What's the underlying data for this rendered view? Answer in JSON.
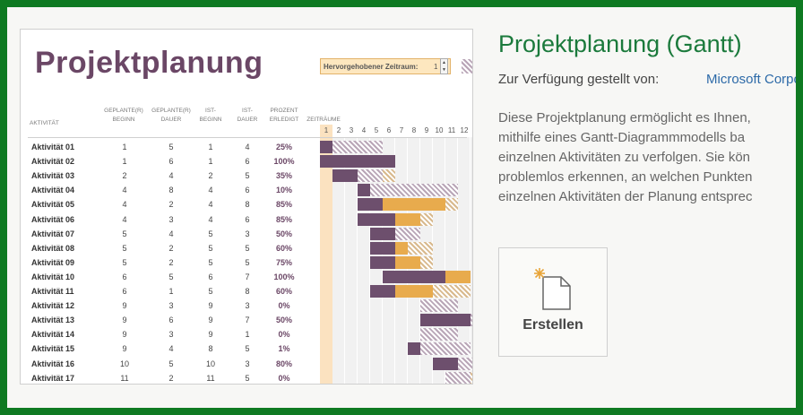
{
  "preview": {
    "title": "Projektplanung",
    "highlight_label": "Hervorgehobener Zeitraum:",
    "highlight_value": "1",
    "headers": {
      "activity": "AKTIVITÄT",
      "plan_start": [
        "GEPLANTE(R)",
        "BEGINN"
      ],
      "plan_dur": [
        "GEPLANTE(R)",
        "DAUER"
      ],
      "act_start": [
        "IST-",
        "BEGINN"
      ],
      "act_dur": [
        "IST-",
        "DAUER"
      ],
      "percent": [
        "PROZENT",
        "ERLEDIGT"
      ],
      "periods": "ZEITRÄUME"
    },
    "days": [
      "1",
      "2",
      "3",
      "4",
      "5",
      "6",
      "7",
      "8",
      "9",
      "10",
      "11",
      "12"
    ],
    "rows": [
      {
        "name": "Aktivität 01",
        "ps": "1",
        "pd": "5",
        "as": "1",
        "ad": "4",
        "pct": "25%"
      },
      {
        "name": "Aktivität 02",
        "ps": "1",
        "pd": "6",
        "as": "1",
        "ad": "6",
        "pct": "100%"
      },
      {
        "name": "Aktivität 03",
        "ps": "2",
        "pd": "4",
        "as": "2",
        "ad": "5",
        "pct": "35%"
      },
      {
        "name": "Aktivität 04",
        "ps": "4",
        "pd": "8",
        "as": "4",
        "ad": "6",
        "pct": "10%"
      },
      {
        "name": "Aktivität 05",
        "ps": "4",
        "pd": "2",
        "as": "4",
        "ad": "8",
        "pct": "85%"
      },
      {
        "name": "Aktivität 06",
        "ps": "4",
        "pd": "3",
        "as": "4",
        "ad": "6",
        "pct": "85%"
      },
      {
        "name": "Aktivität 07",
        "ps": "5",
        "pd": "4",
        "as": "5",
        "ad": "3",
        "pct": "50%"
      },
      {
        "name": "Aktivität 08",
        "ps": "5",
        "pd": "2",
        "as": "5",
        "ad": "5",
        "pct": "60%"
      },
      {
        "name": "Aktivität 09",
        "ps": "5",
        "pd": "2",
        "as": "5",
        "ad": "5",
        "pct": "75%"
      },
      {
        "name": "Aktivität 10",
        "ps": "6",
        "pd": "5",
        "as": "6",
        "ad": "7",
        "pct": "100%"
      },
      {
        "name": "Aktivität 11",
        "ps": "6",
        "pd": "1",
        "as": "5",
        "ad": "8",
        "pct": "60%"
      },
      {
        "name": "Aktivität 12",
        "ps": "9",
        "pd": "3",
        "as": "9",
        "ad": "3",
        "pct": "0%"
      },
      {
        "name": "Aktivität 13",
        "ps": "9",
        "pd": "6",
        "as": "9",
        "ad": "7",
        "pct": "50%"
      },
      {
        "name": "Aktivität 14",
        "ps": "9",
        "pd": "3",
        "as": "9",
        "ad": "1",
        "pct": "0%"
      },
      {
        "name": "Aktivität 15",
        "ps": "9",
        "pd": "4",
        "as": "8",
        "ad": "5",
        "pct": "1%"
      },
      {
        "name": "Aktivität 16",
        "ps": "10",
        "pd": "5",
        "as": "10",
        "ad": "3",
        "pct": "80%"
      },
      {
        "name": "Aktivität 17",
        "ps": "11",
        "pd": "2",
        "as": "11",
        "ad": "5",
        "pct": "0%"
      }
    ]
  },
  "app": {
    "title": "Projektplanung (Gantt)",
    "provided_by_label": "Zur Verfügung gestellt von:",
    "provider": "Microsoft Corporation",
    "description_lines": [
      "Diese Projektplanung ermöglicht es Ihnen,",
      "mithilfe eines Gantt-Diagrammmodells ba",
      "einzelnen Aktivitäten zu verfolgen. Sie kön",
      "problemlos erkennen, an welchen Punkten",
      "einzelnen Aktivitäten der Planung entsprec"
    ],
    "create_label": "Erstellen"
  },
  "colors": {
    "accent_green": "#1b7a3c",
    "title_purple": "#6b4766",
    "actual_bar": "#6d4f6d",
    "overrun_bar": "#e8ab4d",
    "highlight": "#fbe2c0",
    "frame": "#0f7a22"
  }
}
